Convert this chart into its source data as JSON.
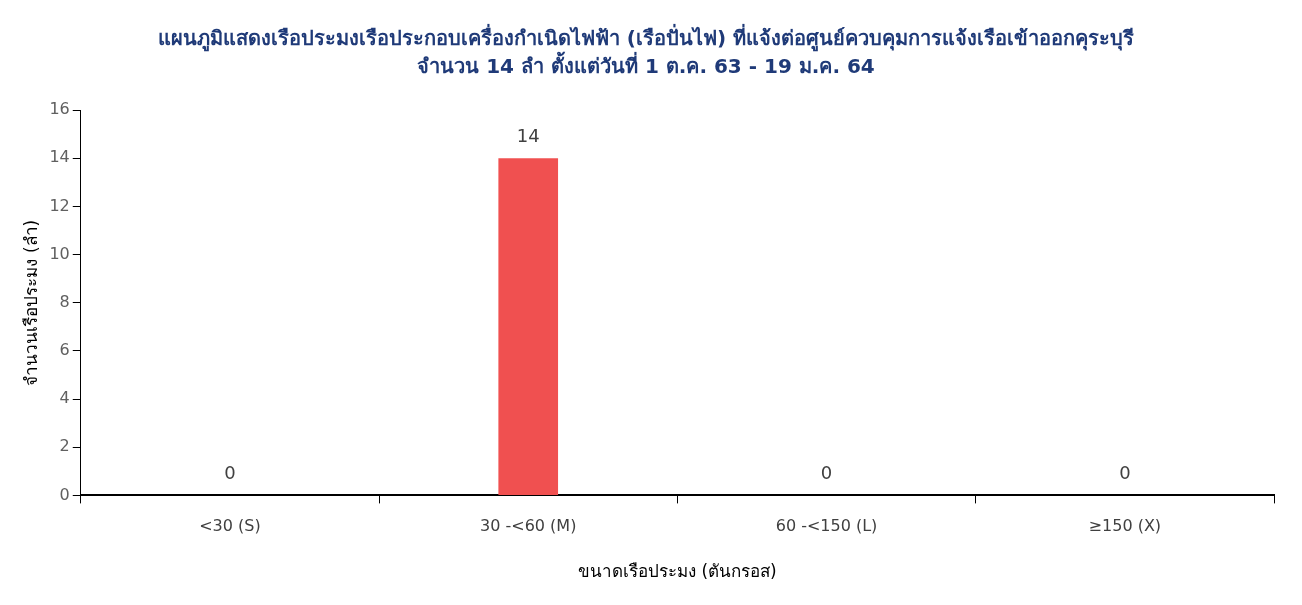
{
  "chart_data": {
    "type": "bar",
    "title": "แผนภูมิแสดงเรือประมงเรือประกอบเครื่องกำเนิดไฟฟ้า (เรือปั่นไฟ) ที่แจ้งต่อศูนย์ควบคุมการแจ้งเรือเข้าออกคุระบุรี",
    "subtitle": "จำนวน 14 ลำ ตั้งแต่วันที่ 1 ต.ค. 63 - 19 ม.ค. 64",
    "xlabel": "ขนาดเรือประมง (ตันกรอส)",
    "ylabel": "จำนวนเรือประมง (ลำ)",
    "categories": [
      "<30 (S)",
      "30 -<60 (M)",
      "60 -<150 (L)",
      "≥150 (X)"
    ],
    "values": [
      0,
      14,
      0,
      0
    ],
    "color": "#f05050",
    "ylim": [
      0,
      16
    ],
    "yticks": [
      0,
      2,
      4,
      6,
      8,
      10,
      12,
      14,
      16
    ],
    "grid": false,
    "legend": false,
    "data_labels": true
  }
}
